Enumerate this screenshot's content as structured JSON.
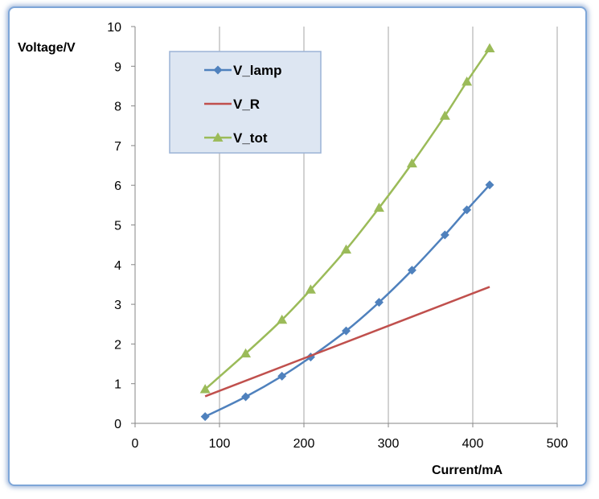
{
  "chart_data": {
    "type": "line",
    "xlabel": "Current/mA",
    "ylabel": "Voltage/V",
    "xlim": [
      0,
      500
    ],
    "ylim": [
      0,
      10
    ],
    "xticks": [
      0,
      100,
      200,
      300,
      400,
      500
    ],
    "yticks": [
      0,
      1,
      2,
      3,
      4,
      5,
      6,
      7,
      8,
      9,
      10
    ],
    "grid": "vertical-major",
    "legend_position": "top-left",
    "series": [
      {
        "name": "V_lamp",
        "color": "#4f81bd",
        "marker": "diamond",
        "x": [
          83,
          131,
          174,
          208,
          250,
          289,
          328,
          367,
          393,
          420
        ],
        "y": [
          0.17,
          0.67,
          1.19,
          1.67,
          2.33,
          3.05,
          3.86,
          4.75,
          5.38,
          6.01
        ]
      },
      {
        "name": "V_R",
        "color": "#c0504d",
        "marker": "none",
        "x": [
          83,
          420
        ],
        "y": [
          0.68,
          3.44
        ]
      },
      {
        "name": "V_tot",
        "color": "#9bbb59",
        "marker": "triangle",
        "x": [
          83,
          131,
          174,
          208,
          250,
          289,
          328,
          367,
          393,
          420
        ],
        "y": [
          0.86,
          1.76,
          2.61,
          3.37,
          4.38,
          5.43,
          6.55,
          7.75,
          8.61,
          9.45
        ]
      }
    ]
  }
}
